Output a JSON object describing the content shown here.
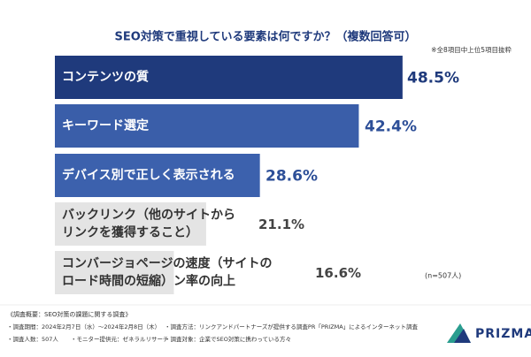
{
  "chart_data": {
    "type": "bar",
    "orientation": "horizontal",
    "title": "SEO対策で重視している要素は何ですか？（複数回答可）",
    "subtitle": "※全8項目中上位5項目抜粋",
    "categories": [
      [
        "コンテンツの質"
      ],
      [
        "キーワード選定"
      ],
      [
        "デバイス別で正しく表示される"
      ],
      [
        "バックリンク（他のサイトから",
        "リンクを獲得すること）"
      ],
      [
        "コンバージョページの速度（サイトの",
        "ロード時間の短縮）ン率の向上"
      ]
    ],
    "values": [
      48.5,
      42.4,
      28.6,
      21.1,
      16.6
    ],
    "value_labels": [
      "48.5%",
      "42.4%",
      "28.6%",
      "21.1%",
      "16.6%"
    ],
    "colors": [
      "#1f3a7c",
      "#3a5ea9",
      "#3c61ad",
      "#e4e4e4",
      "#e4e4e4"
    ],
    "label_colors": [
      "#ffffff",
      "#ffffff",
      "#ffffff",
      "#333333",
      "#333333"
    ],
    "value_colors": [
      "#1f3a7c",
      "#2d4f98",
      "#2d4f98",
      "#444444",
      "#444444"
    ],
    "note": "(n=507人)",
    "footer": [
      "《調査概要：SEO対策の課題に関する調査》",
      "・調査期間：2024年2月7日（水）～2024年2月8日（木）",
      "・調査方法：リンクアンドパートナーズが提供する調査PR「PRIZMA」によるインターネット調査",
      "・調査人数：507人",
      "・モニター提供元：ゼネラルリサーチ",
      "・調査対象：企業でSEO対策に携わっている方々"
    ],
    "logo": "PRIZMA"
  }
}
